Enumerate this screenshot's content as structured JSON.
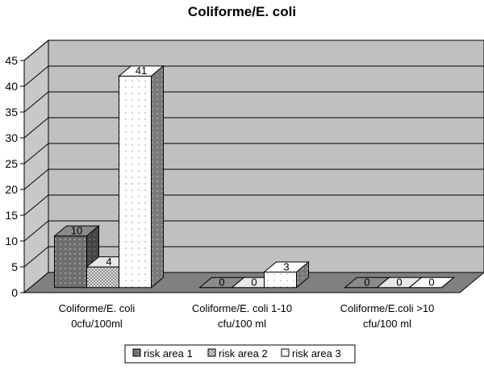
{
  "chart_data": {
    "type": "bar",
    "title": "Coliforme/E. coli",
    "categories": [
      [
        "Coliforme/E. coli",
        "0cfu/100ml"
      ],
      [
        "Coliforme/E. coli 1-10",
        "cfu/100 ml"
      ],
      [
        "Coliforme/E.coli >10",
        "cfu/100 ml"
      ]
    ],
    "series": [
      {
        "name": "risk area 1",
        "values": [
          10,
          0,
          0
        ],
        "color": "#6e6e6e"
      },
      {
        "name": "risk area 2",
        "values": [
          4,
          0,
          0
        ],
        "color": "#c4c4c4"
      },
      {
        "name": "risk area 3",
        "values": [
          41,
          3,
          0
        ],
        "color": "#ffffff"
      }
    ],
    "ylim": [
      0,
      45
    ],
    "yticks": [
      0,
      5,
      10,
      15,
      20,
      25,
      30,
      35,
      40,
      45
    ],
    "grid": true,
    "three_d": true,
    "legend_position": "bottom"
  }
}
